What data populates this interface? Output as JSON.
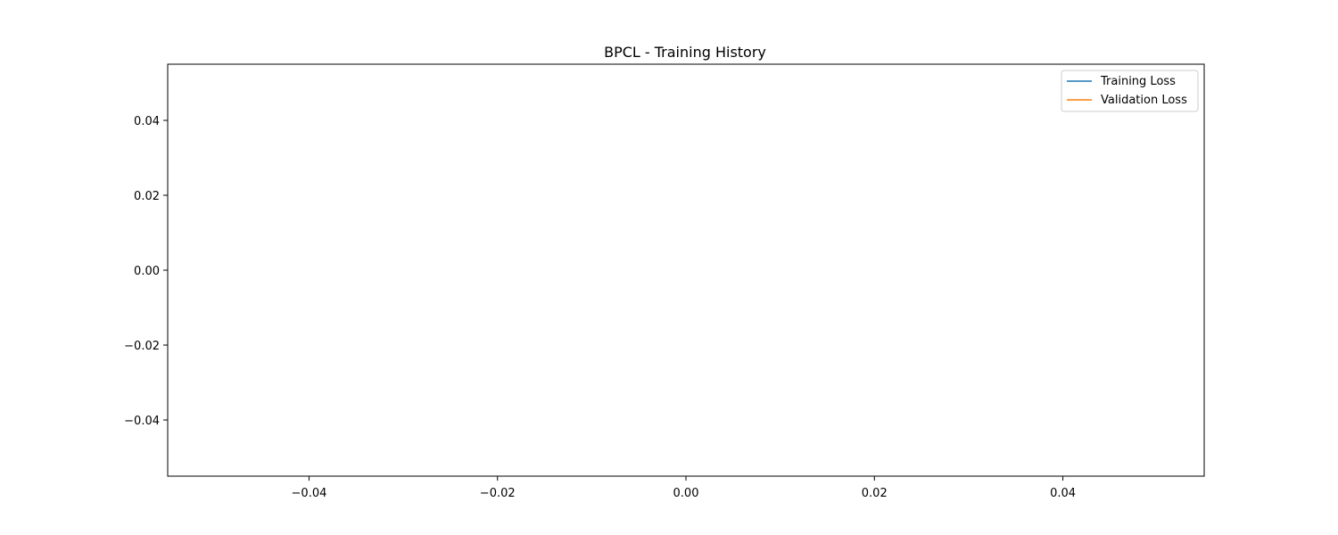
{
  "chart_data": {
    "type": "line",
    "title": "BPCL - Training History",
    "xlabel": "",
    "ylabel": "",
    "xlim": [
      -0.055,
      0.055
    ],
    "ylim": [
      -0.055,
      0.055
    ],
    "x_ticks": [
      -0.04,
      -0.02,
      0.0,
      0.02,
      0.04
    ],
    "x_tick_labels": [
      "−0.04",
      "−0.02",
      "0.00",
      "0.02",
      "0.04"
    ],
    "y_ticks": [
      0.04,
      0.02,
      0.0,
      -0.02,
      -0.04
    ],
    "y_tick_labels": [
      "0.04",
      "0.02",
      "0.00",
      "−0.02",
      "−0.04"
    ],
    "grid": false,
    "legend_position": "top-right",
    "series": [
      {
        "name": "Training Loss",
        "color": "#1f77b4",
        "x": [],
        "y": []
      },
      {
        "name": "Validation Loss",
        "color": "#ff7f0e",
        "x": [],
        "y": []
      }
    ]
  }
}
